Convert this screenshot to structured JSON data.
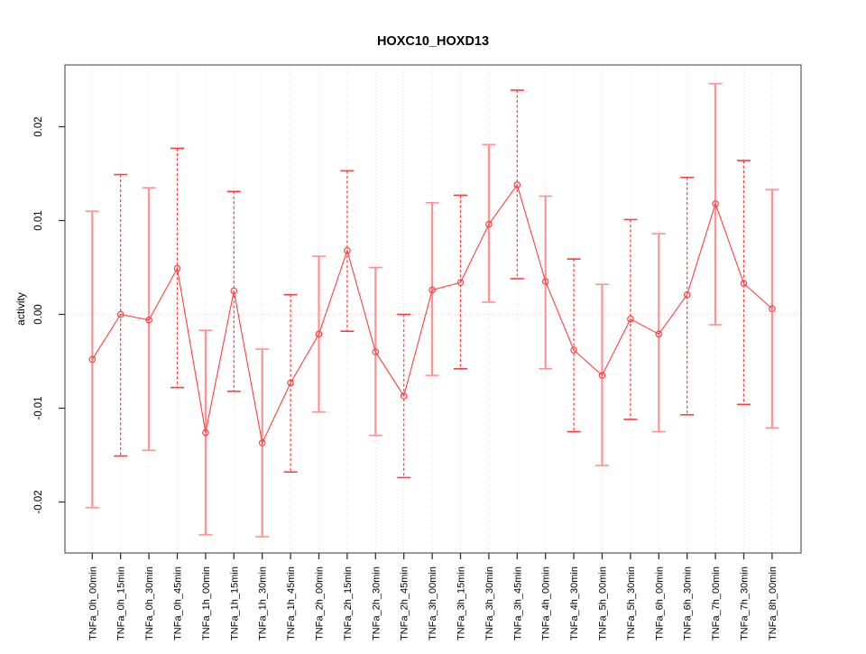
{
  "chart_data": {
    "type": "line",
    "title": "HOXC10_HOXD13",
    "ylabel": "activity",
    "xlabel": "",
    "legend_position": "none",
    "grid": "vertical-dotted",
    "zero_line": true,
    "ylim": [
      -0.0255,
      0.0266
    ],
    "yticks": [
      -0.02,
      -0.01,
      0,
      0.01,
      0.02
    ],
    "ytick_labels": [
      "-0.02",
      "-0.01",
      "0.00",
      "0.01",
      "0.02"
    ],
    "categories": [
      "TNFa_0h_00min",
      "TNFa_0h_15min",
      "TNFa_0h_30min",
      "TNFa_0h_45min",
      "TNFa_1h_00min",
      "TNFa_1h_15min",
      "TNFa_1h_30min",
      "TNFa_1h_45min",
      "TNFa_2h_00min",
      "TNFa_2h_15min",
      "TNFa_2h_30min",
      "TNFa_2h_45min",
      "TNFa_3h_00min",
      "TNFa_3h_15min",
      "TNFa_3h_30min",
      "TNFa_3h_45min",
      "TNFa_4h_00min",
      "TNFa_4h_30min",
      "TNFa_5h_00min",
      "TNFa_5h_30min",
      "TNFa_6h_00min",
      "TNFa_6h_30min",
      "TNFa_7h_00min",
      "TNFa_7h_30min",
      "TNFa_8h_00min"
    ],
    "series": [
      {
        "name": "activity",
        "values": [
          -0.0048,
          0.0,
          -0.0006,
          0.0049,
          -0.0126,
          0.0025,
          -0.0137,
          -0.0073,
          -0.0021,
          0.0068,
          -0.004,
          -0.0087,
          0.0026,
          0.0034,
          0.0096,
          0.0138,
          0.0035,
          -0.0038,
          -0.0065,
          -0.0005,
          -0.0021,
          0.0021,
          0.0118,
          0.0033,
          0.0006
        ],
        "error_high": [
          0.011,
          0.0149,
          0.0135,
          0.0177,
          -0.0017,
          0.0131,
          -0.0037,
          0.0021,
          0.0062,
          0.0153,
          0.005,
          0.0,
          0.0119,
          0.0127,
          0.0181,
          0.0239,
          0.0126,
          0.0059,
          0.0032,
          0.0101,
          0.0086,
          0.0146,
          0.0246,
          0.0164,
          0.0133
        ],
        "error_low": [
          -0.0206,
          -0.0151,
          -0.0145,
          -0.0078,
          -0.0235,
          -0.0082,
          -0.0237,
          -0.0168,
          -0.0104,
          -0.0018,
          -0.0129,
          -0.0174,
          -0.0065,
          -0.0058,
          0.0013,
          0.0038,
          -0.0058,
          -0.0125,
          -0.0161,
          -0.0112,
          -0.0125,
          -0.0107,
          -0.0011,
          -0.0096,
          -0.0121
        ]
      }
    ],
    "errorbar_style_pattern": [
      "solid-pink",
      "dashed-red"
    ],
    "colors": {
      "line": "#ff4040",
      "marker": "#ff4040",
      "errorbar_solid": "#ff9292",
      "errorbar_dashed": "#ff3b3b",
      "zero_line_color": "#f5c9c9",
      "grid_color": "#dadada",
      "box_color": "#666666",
      "tick_color": "#333333",
      "text_color": "#000000"
    }
  }
}
